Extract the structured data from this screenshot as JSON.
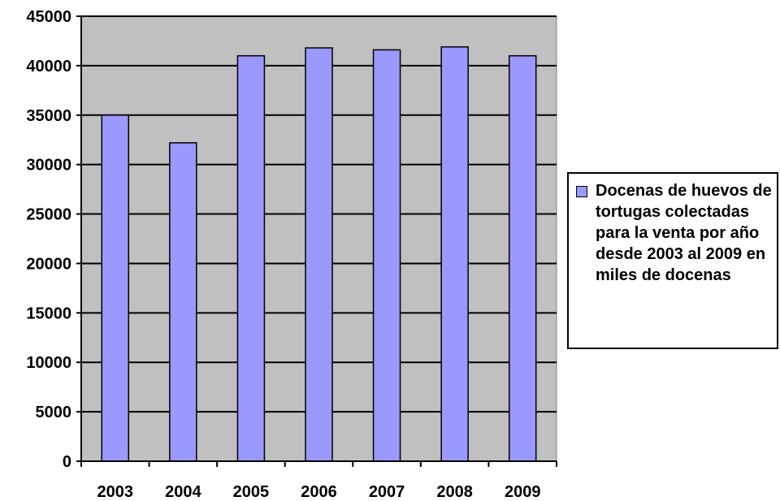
{
  "chart_data": {
    "type": "bar",
    "categories": [
      "2003",
      "2004",
      "2005",
      "2006",
      "2007",
      "2008",
      "2009"
    ],
    "series": [
      {
        "name": "Docenas de huevos de tortugas colectadas para la venta por año desde 2003 al 2009 en miles de docenas",
        "values": [
          35000,
          32200,
          41000,
          41800,
          41600,
          41900,
          41000
        ]
      }
    ],
    "yticks": [
      "0",
      "5000",
      "10000",
      "15000",
      "20000",
      "25000",
      "30000",
      "35000",
      "40000",
      "45000"
    ],
    "ylim": [
      0,
      45000
    ],
    "grid": true,
    "legend_position": "right",
    "colors": {
      "bar": "#9999ff",
      "plot_background": "#c0c0c0",
      "grid": "#000000"
    }
  }
}
